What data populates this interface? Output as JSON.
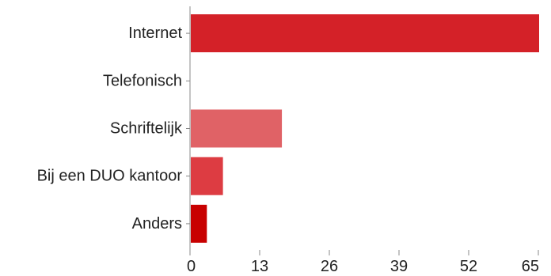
{
  "chart_data": {
    "type": "bar",
    "orientation": "horizontal",
    "title": "",
    "xlabel": "",
    "ylabel": "",
    "categories": [
      "Internet",
      "Telefonisch",
      "Schriftelijk",
      "Bij een DUO kantoor",
      "Anders"
    ],
    "values": [
      65,
      0,
      17,
      6,
      3
    ],
    "bar_colors": [
      "#d42128",
      "#d42128",
      "#e06266",
      "#dd3c42",
      "#c80000"
    ],
    "xlim": [
      0,
      65
    ],
    "xticks": [
      "0",
      "13",
      "26",
      "39",
      "52",
      "65"
    ],
    "grid": false,
    "legend": "none"
  }
}
